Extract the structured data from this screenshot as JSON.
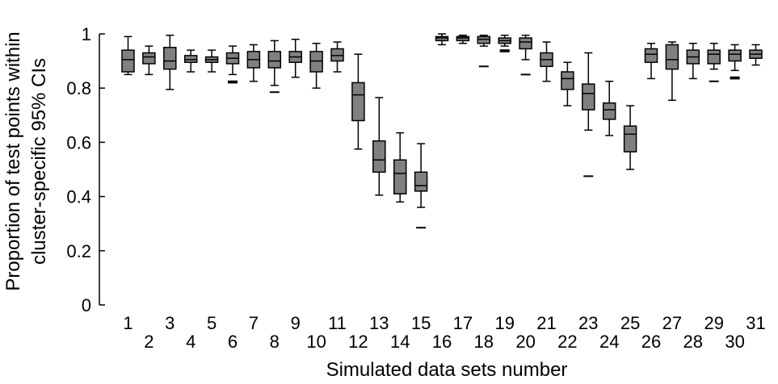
{
  "chart_data": {
    "type": "box",
    "xlabel": "Simulated data sets number",
    "ylabel_lines": [
      "Proportion of test points within",
      "cluster-specific 95% CIs"
    ],
    "ylim": [
      0,
      1
    ],
    "yticks": [
      0,
      0.2,
      0.4,
      0.6,
      0.8,
      1
    ],
    "ytick_labels": [
      "0",
      "0.2",
      "0.4",
      "0.6",
      "0.8",
      "1"
    ],
    "box_color": "#808080",
    "categories": [
      "1",
      "2",
      "3",
      "4",
      "5",
      "6",
      "7",
      "8",
      "9",
      "10",
      "11",
      "12",
      "13",
      "14",
      "15",
      "16",
      "17",
      "18",
      "19",
      "20",
      "21",
      "22",
      "23",
      "24",
      "25",
      "26",
      "27",
      "28",
      "29",
      "30",
      "31"
    ],
    "boxes": [
      {
        "label": "1",
        "whisker_low": 0.85,
        "q1": 0.86,
        "median": 0.905,
        "q3": 0.94,
        "whisker_high": 0.99,
        "outliers": []
      },
      {
        "label": "2",
        "whisker_low": 0.85,
        "q1": 0.89,
        "median": 0.915,
        "q3": 0.93,
        "whisker_high": 0.955,
        "outliers": []
      },
      {
        "label": "3",
        "whisker_low": 0.795,
        "q1": 0.87,
        "median": 0.9,
        "q3": 0.95,
        "whisker_high": 0.995,
        "outliers": []
      },
      {
        "label": "4",
        "whisker_low": 0.86,
        "q1": 0.895,
        "median": 0.905,
        "q3": 0.92,
        "whisker_high": 0.94,
        "outliers": []
      },
      {
        "label": "5",
        "whisker_low": 0.86,
        "q1": 0.895,
        "median": 0.905,
        "q3": 0.915,
        "whisker_high": 0.94,
        "outliers": []
      },
      {
        "label": "6",
        "whisker_low": 0.85,
        "q1": 0.89,
        "median": 0.91,
        "q3": 0.93,
        "whisker_high": 0.955,
        "outliers": [
          0.825,
          0.82
        ]
      },
      {
        "label": "7",
        "whisker_low": 0.825,
        "q1": 0.875,
        "median": 0.905,
        "q3": 0.935,
        "whisker_high": 0.96,
        "outliers": []
      },
      {
        "label": "8",
        "whisker_low": 0.81,
        "q1": 0.875,
        "median": 0.9,
        "q3": 0.935,
        "whisker_high": 0.975,
        "outliers": [
          0.785
        ]
      },
      {
        "label": "9",
        "whisker_low": 0.84,
        "q1": 0.895,
        "median": 0.915,
        "q3": 0.935,
        "whisker_high": 0.98,
        "outliers": []
      },
      {
        "label": "10",
        "whisker_low": 0.8,
        "q1": 0.86,
        "median": 0.9,
        "q3": 0.935,
        "whisker_high": 0.965,
        "outliers": []
      },
      {
        "label": "11",
        "whisker_low": 0.86,
        "q1": 0.9,
        "median": 0.92,
        "q3": 0.945,
        "whisker_high": 0.97,
        "outliers": []
      },
      {
        "label": "12",
        "whisker_low": 0.575,
        "q1": 0.68,
        "median": 0.775,
        "q3": 0.82,
        "whisker_high": 0.925,
        "outliers": []
      },
      {
        "label": "13",
        "whisker_low": 0.405,
        "q1": 0.49,
        "median": 0.535,
        "q3": 0.605,
        "whisker_high": 0.765,
        "outliers": []
      },
      {
        "label": "14",
        "whisker_low": 0.38,
        "q1": 0.41,
        "median": 0.485,
        "q3": 0.535,
        "whisker_high": 0.635,
        "outliers": []
      },
      {
        "label": "15",
        "whisker_low": 0.36,
        "q1": 0.42,
        "median": 0.44,
        "q3": 0.49,
        "whisker_high": 0.595,
        "outliers": [
          0.285
        ]
      },
      {
        "label": "16",
        "whisker_low": 0.96,
        "q1": 0.975,
        "median": 0.985,
        "q3": 0.99,
        "whisker_high": 1.0,
        "outliers": []
      },
      {
        "label": "17",
        "whisker_low": 0.965,
        "q1": 0.975,
        "median": 0.985,
        "q3": 0.99,
        "whisker_high": 0.995,
        "outliers": []
      },
      {
        "label": "18",
        "whisker_low": 0.955,
        "q1": 0.965,
        "median": 0.98,
        "q3": 0.99,
        "whisker_high": 0.995,
        "outliers": [
          0.88
        ]
      },
      {
        "label": "19",
        "whisker_low": 0.955,
        "q1": 0.965,
        "median": 0.975,
        "q3": 0.985,
        "whisker_high": 0.995,
        "outliers": [
          0.94,
          0.935
        ]
      },
      {
        "label": "20",
        "whisker_low": 0.905,
        "q1": 0.945,
        "median": 0.97,
        "q3": 0.985,
        "whisker_high": 0.995,
        "outliers": [
          0.85
        ]
      },
      {
        "label": "21",
        "whisker_low": 0.825,
        "q1": 0.88,
        "median": 0.905,
        "q3": 0.93,
        "whisker_high": 0.97,
        "outliers": []
      },
      {
        "label": "22",
        "whisker_low": 0.735,
        "q1": 0.795,
        "median": 0.835,
        "q3": 0.86,
        "whisker_high": 0.895,
        "outliers": []
      },
      {
        "label": "23",
        "whisker_low": 0.645,
        "q1": 0.72,
        "median": 0.78,
        "q3": 0.815,
        "whisker_high": 0.93,
        "outliers": [
          0.475
        ]
      },
      {
        "label": "24",
        "whisker_low": 0.625,
        "q1": 0.685,
        "median": 0.72,
        "q3": 0.745,
        "whisker_high": 0.825,
        "outliers": []
      },
      {
        "label": "25",
        "whisker_low": 0.5,
        "q1": 0.565,
        "median": 0.63,
        "q3": 0.66,
        "whisker_high": 0.735,
        "outliers": []
      },
      {
        "label": "26",
        "whisker_low": 0.835,
        "q1": 0.895,
        "median": 0.925,
        "q3": 0.945,
        "whisker_high": 0.965,
        "outliers": []
      },
      {
        "label": "27",
        "whisker_low": 0.755,
        "q1": 0.87,
        "median": 0.905,
        "q3": 0.96,
        "whisker_high": 0.97,
        "outliers": []
      },
      {
        "label": "28",
        "whisker_low": 0.835,
        "q1": 0.89,
        "median": 0.915,
        "q3": 0.94,
        "whisker_high": 0.965,
        "outliers": []
      },
      {
        "label": "29",
        "whisker_low": 0.87,
        "q1": 0.89,
        "median": 0.925,
        "q3": 0.94,
        "whisker_high": 0.965,
        "outliers": [
          0.825
        ]
      },
      {
        "label": "30",
        "whisker_low": 0.865,
        "q1": 0.9,
        "median": 0.925,
        "q3": 0.94,
        "whisker_high": 0.96,
        "outliers": [
          0.84,
          0.835
        ]
      },
      {
        "label": "31",
        "whisker_low": 0.885,
        "q1": 0.91,
        "median": 0.925,
        "q3": 0.94,
        "whisker_high": 0.96,
        "outliers": []
      }
    ]
  }
}
